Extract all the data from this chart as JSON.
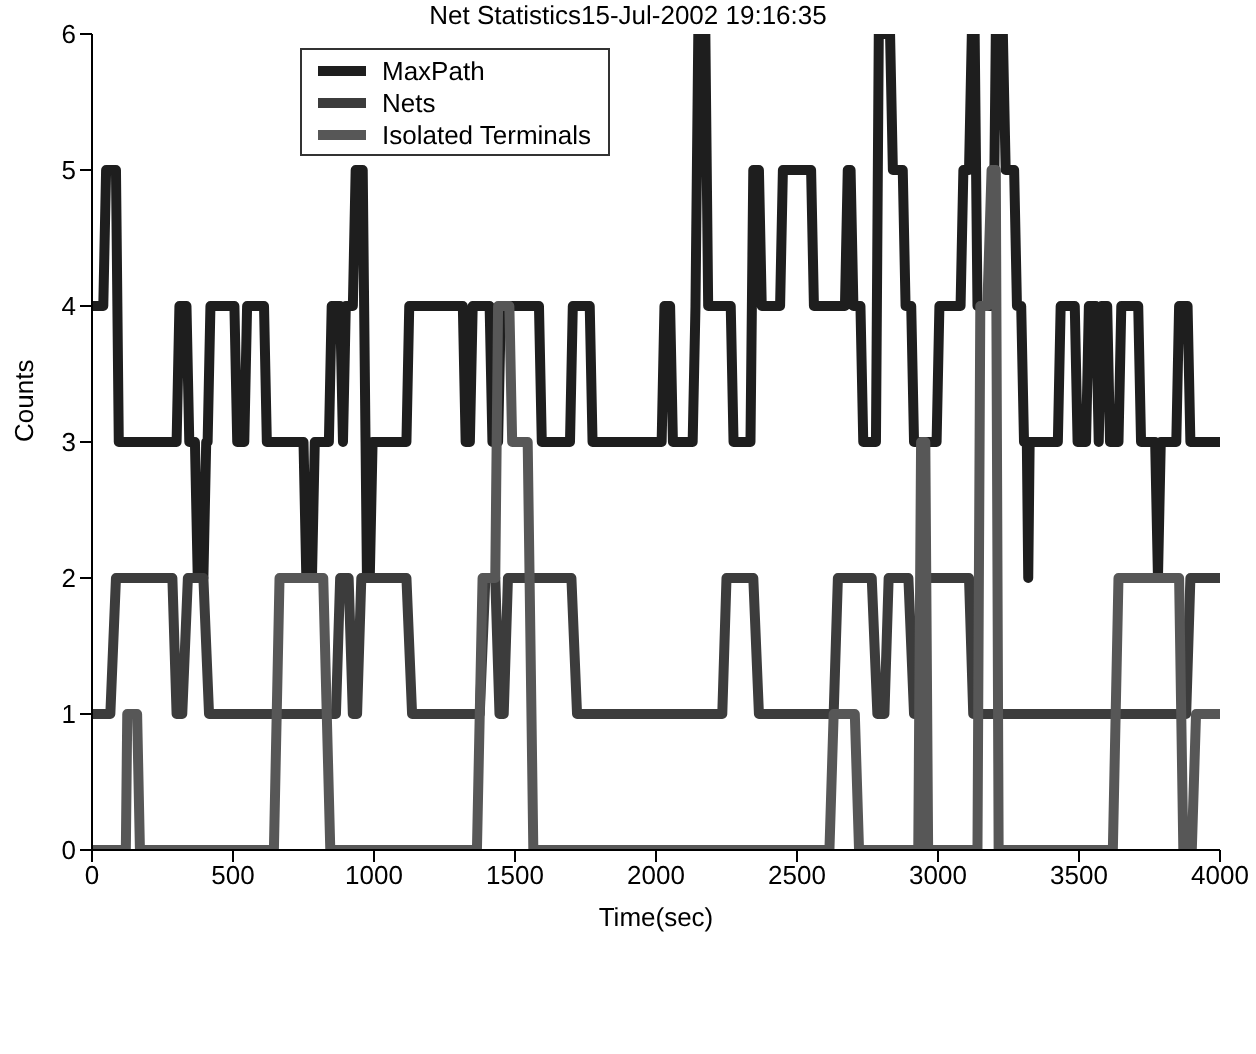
{
  "chart_data": {
    "type": "line",
    "title": "Net Statistics15-Jul-2002 19:16:35",
    "xlabel": "Time(sec)",
    "ylabel": "Counts",
    "xlim": [
      0,
      4000
    ],
    "xticks": [
      0,
      500,
      1000,
      1500,
      2000,
      2500,
      3000,
      3500,
      4000
    ],
    "ylim": [
      0,
      6
    ],
    "yticks": [
      0,
      1,
      2,
      3,
      4,
      5,
      6
    ],
    "grid": false,
    "legend": "top left",
    "marker": "none",
    "line_style": "solid",
    "series": [
      {
        "name": "MaxPath",
        "color": "#1e1e1e",
        "x": [
          0,
          40,
          50,
          85,
          95,
          300,
          310,
          335,
          345,
          365,
          375,
          395,
          405,
          410,
          420,
          505,
          515,
          540,
          550,
          610,
          620,
          750,
          760,
          780,
          790,
          840,
          850,
          880,
          890,
          900,
          925,
          935,
          960,
          970,
          975,
          985,
          995,
          1115,
          1125,
          1315,
          1325,
          1340,
          1350,
          1410,
          1420,
          1440,
          1450,
          1585,
          1595,
          1695,
          1705,
          1765,
          1775,
          2020,
          2030,
          2050,
          2060,
          2130,
          2140,
          2150,
          2175,
          2185,
          2265,
          2275,
          2335,
          2345,
          2365,
          2375,
          2440,
          2450,
          2550,
          2560,
          2670,
          2680,
          2690,
          2700,
          2725,
          2735,
          2780,
          2790,
          2830,
          2840,
          2875,
          2885,
          2905,
          2915,
          2995,
          3005,
          3080,
          3090,
          3110,
          3120,
          3130,
          3140,
          3195,
          3205,
          3230,
          3240,
          3270,
          3280,
          3295,
          3305,
          3315,
          3320,
          3325,
          3425,
          3435,
          3485,
          3495,
          3525,
          3535,
          3560,
          3570,
          3580,
          3600,
          3610,
          3640,
          3650,
          3710,
          3720,
          3770,
          3780,
          3790,
          3845,
          3855,
          3885,
          3895,
          4000
        ],
        "values": [
          4,
          4,
          5,
          5,
          3,
          3,
          4,
          4,
          3,
          3,
          2,
          2,
          3,
          3,
          4,
          4,
          3,
          3,
          4,
          4,
          3,
          3,
          2,
          2,
          3,
          3,
          4,
          4,
          3,
          4,
          4,
          5,
          5,
          3,
          2,
          2,
          3,
          3,
          4,
          4,
          3,
          3,
          4,
          4,
          3,
          3,
          4,
          4,
          3,
          3,
          4,
          4,
          3,
          3,
          4,
          4,
          3,
          3,
          4,
          6,
          6,
          4,
          4,
          3,
          3,
          5,
          5,
          4,
          4,
          5,
          5,
          4,
          4,
          5,
          5,
          4,
          4,
          3,
          3,
          6,
          6,
          5,
          5,
          4,
          4,
          3,
          3,
          4,
          4,
          5,
          5,
          6,
          6,
          4,
          4,
          6,
          6,
          5,
          5,
          4,
          4,
          3,
          3,
          2,
          3,
          3,
          4,
          4,
          3,
          3,
          4,
          4,
          3,
          4,
          4,
          3,
          3,
          4,
          4,
          3,
          3,
          2,
          3,
          3,
          4,
          4,
          3,
          3
        ]
      },
      {
        "name": "Nets",
        "color": "#3c3c3c",
        "x": [
          0,
          65,
          85,
          285,
          300,
          320,
          340,
          395,
          415,
          865,
          880,
          910,
          925,
          940,
          955,
          1115,
          1135,
          1375,
          1395,
          1430,
          1445,
          1460,
          1475,
          1700,
          1720,
          2235,
          2250,
          2345,
          2365,
          2630,
          2645,
          2765,
          2785,
          2810,
          2825,
          2895,
          2915,
          2930,
          2945,
          3110,
          3125,
          3880,
          3895,
          4000
        ],
        "values": [
          1,
          1,
          2,
          2,
          1,
          1,
          2,
          2,
          1,
          1,
          2,
          2,
          1,
          1,
          2,
          2,
          1,
          1,
          2,
          2,
          1,
          1,
          2,
          2,
          1,
          1,
          2,
          2,
          1,
          1,
          2,
          2,
          1,
          1,
          2,
          2,
          1,
          1,
          2,
          2,
          1,
          1,
          2,
          2
        ]
      },
      {
        "name": "Isolated Terminals",
        "color": "#575757",
        "x": [
          0,
          120,
          125,
          160,
          170,
          645,
          665,
          820,
          845,
          1365,
          1385,
          1430,
          1440,
          1480,
          1490,
          1545,
          1565,
          2615,
          2630,
          2705,
          2720,
          2930,
          2940,
          2955,
          2965,
          3140,
          3150,
          3175,
          3190,
          3205,
          3215,
          3620,
          3640,
          3855,
          3870,
          3900,
          3915,
          4000
        ],
        "values": [
          0,
          0,
          1,
          1,
          0,
          0,
          2,
          2,
          0,
          0,
          2,
          2,
          4,
          4,
          3,
          3,
          0,
          0,
          1,
          1,
          0,
          0,
          3,
          3,
          0,
          0,
          4,
          4,
          5,
          5,
          0,
          0,
          2,
          2,
          0,
          0,
          1,
          1
        ]
      }
    ]
  }
}
